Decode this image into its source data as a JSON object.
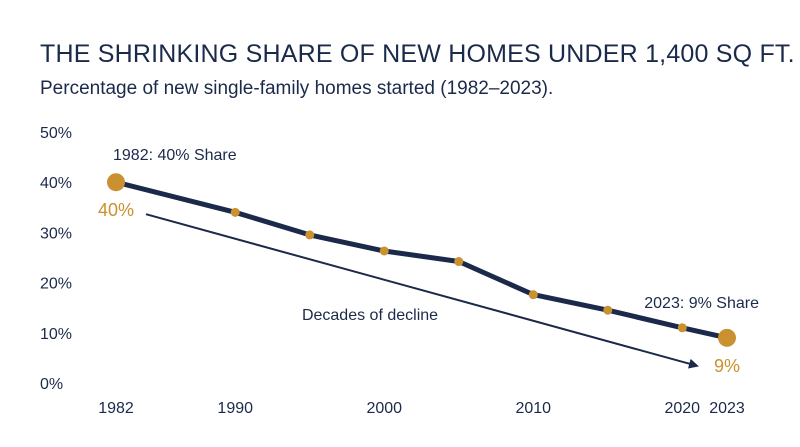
{
  "title": "THE SHRINKING SHARE OF NEW HOMES UNDER 1,400 SQ FT.",
  "subtitle": "Percentage of new single-family homes started (1982–2023).",
  "colors": {
    "line": "#1b2a4a",
    "marker": "#c9912f",
    "text": "#1b2a4a",
    "accent_text": "#c9912f"
  },
  "chart_data": {
    "type": "line",
    "title": "THE SHRINKING SHARE OF NEW HOMES UNDER 1,400 SQ FT.",
    "subtitle": "Percentage of new single-family homes started (1982–2023).",
    "xlabel": "",
    "ylabel": "",
    "x": [
      1982,
      1990,
      1995,
      2000,
      2005,
      2010,
      2015,
      2020,
      2023
    ],
    "values": [
      40,
      34,
      29.5,
      26.3,
      24.2,
      17.6,
      14.5,
      11,
      9
    ],
    "ylim": [
      0,
      50
    ],
    "y_ticks": [
      0,
      10,
      20,
      30,
      40,
      50
    ],
    "y_tick_labels": [
      "0%",
      "10%",
      "20%",
      "30%",
      "40%",
      "50%"
    ],
    "x_ticks": [
      1982,
      1990,
      2000,
      2010,
      2020,
      2023
    ],
    "x_tick_labels": [
      "1982",
      "1990",
      "2000",
      "2010",
      "2020",
      "2023"
    ],
    "grid": false,
    "annotations": {
      "start_label": "1982: 40% Share",
      "start_value": "40%",
      "end_label": "2023: 9% Share",
      "end_value": "9%",
      "trend_label": "Decades of decline"
    }
  }
}
